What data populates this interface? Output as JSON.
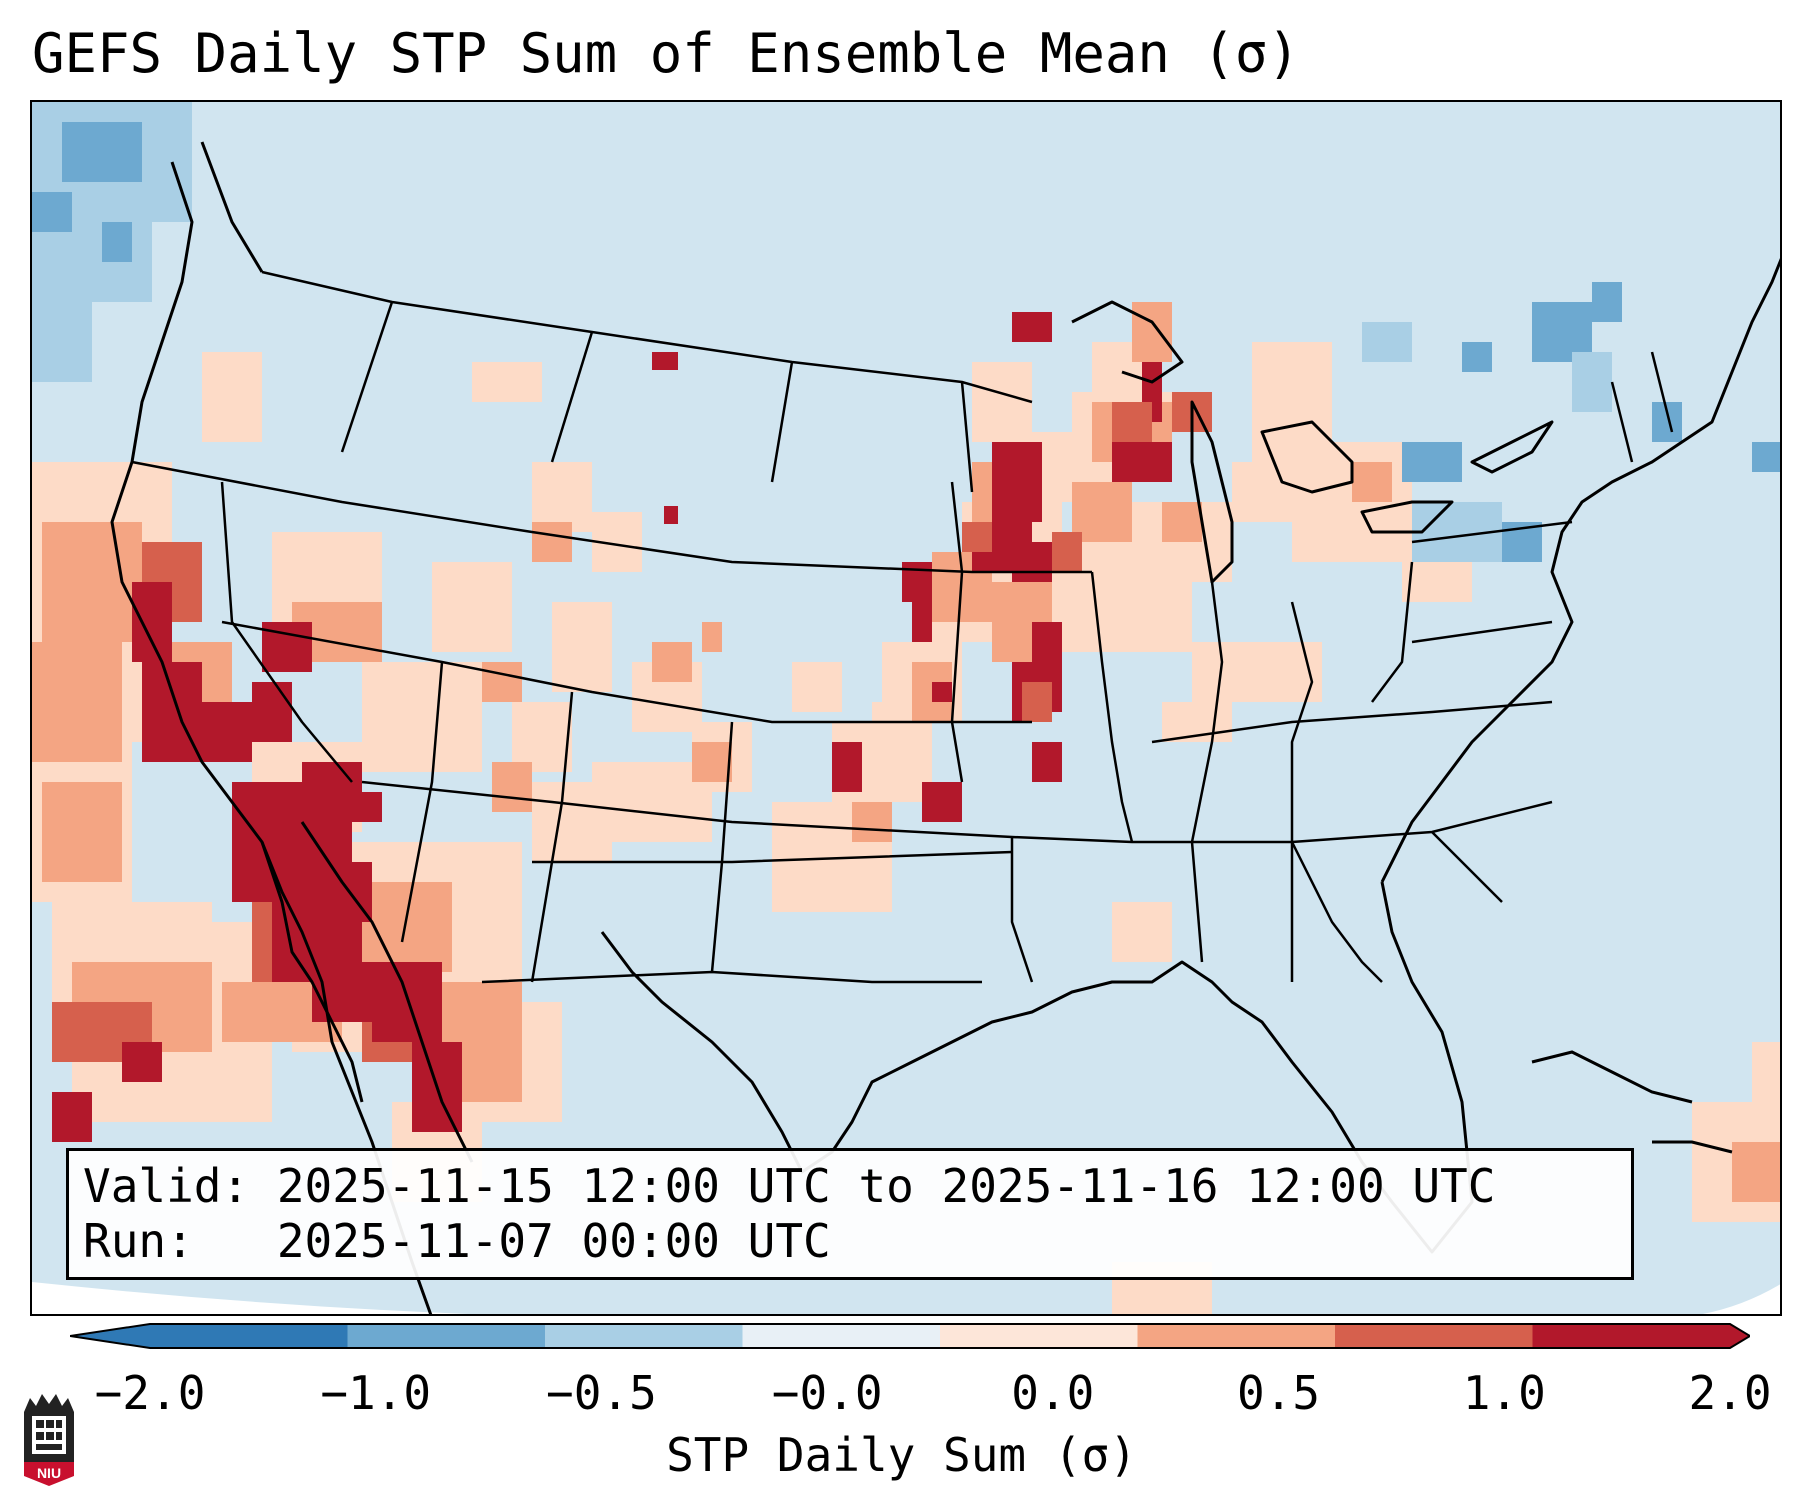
{
  "title": "GEFS Daily STP Sum of Ensemble Mean (σ)",
  "info": {
    "valid_line": "Valid: 2025-11-15 12:00 UTC to 2025-11-16 12:00 UTC",
    "run_line": "Run:   2025-11-07 00:00 UTC"
  },
  "colorbar": {
    "label": "STP Daily Sum (σ)",
    "ticks": [
      "−2.0",
      "−1.0",
      "−0.5",
      "−0.0",
      "0.0",
      "0.5",
      "1.0",
      "2.0"
    ],
    "colors": [
      "#2f79b5",
      "#6da9d0",
      "#a9cfe5",
      "#e8f0f6",
      "#fde6d9",
      "#f4a583",
      "#d6604d",
      "#b2182b"
    ],
    "extend": "both"
  },
  "map": {
    "region": "Continental United States",
    "ocean_color": "#d1e5f0",
    "background_color": "#ffffff",
    "legend": {
      "strong_negative": "#6da9d0",
      "weak_negative": "#a9cfe5",
      "weak_positive": "#fddbc7",
      "moderate_positive": "#f4a583",
      "strong_positive": "#d6604d",
      "very_strong_positive": "#b2182b"
    }
  },
  "logo": {
    "label": "NIU"
  }
}
